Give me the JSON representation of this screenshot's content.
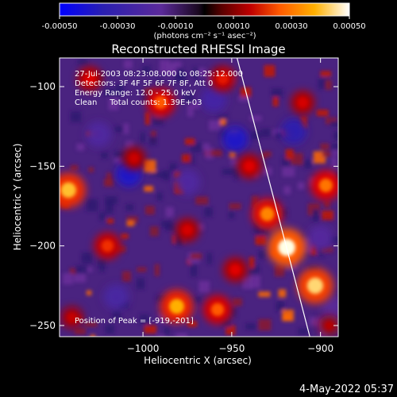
{
  "colors": {
    "background": "#000000",
    "foreground": "#ffffff",
    "colormap": [
      "#0000ff",
      "#3a1f9e",
      "#5b2a9a",
      "#6a2b88",
      "#000000",
      "#5a0000",
      "#aa0000",
      "#e00000",
      "#ff5a00",
      "#ff9a00",
      "#ffd000",
      "#ffffff"
    ]
  },
  "colorbar": {
    "ticks": [
      "-0.00050",
      "-0.00030",
      "-0.00010",
      "0.00010",
      "0.00030",
      "0.00050"
    ],
    "tick_values": [
      -0.0005,
      -0.0003,
      -0.0001,
      0.0001,
      0.0003,
      0.0005
    ],
    "range": [
      -0.0005,
      0.0005
    ],
    "unit_label": "(photons cm⁻² s⁻¹ asec⁻²)"
  },
  "chart_data": {
    "type": "heatmap",
    "title": "Reconstructed RHESSI Image",
    "xlabel": "Heliocentric X (arcsec)",
    "ylabel": "Heliocentric Y (arcsec)",
    "xlim": [
      -1047,
      -890
    ],
    "ylim": [
      -257,
      -82
    ],
    "x_ticks": [
      -1000,
      -950,
      -900
    ],
    "y_ticks": [
      -100,
      -150,
      -200,
      -250
    ],
    "x_tick_labels": [
      "−1000",
      "−950",
      "−900"
    ],
    "y_tick_labels": [
      "−100",
      "−150",
      "−200",
      "−250"
    ],
    "annotations": [
      "27-Jul-2003 08:23:08.000 to 08:25:12.000",
      "Detectors: 3F 4F 5F 6F 7F 8F, Att 0",
      "Energy Range: 12.0 - 25.0 keV",
      "Clean     Total counts: 1.39E+03"
    ],
    "peak_label": "Position of Peak = [-919,-201]",
    "peak": [
      -919,
      -201
    ],
    "limb_line": [
      [
        -947,
        -82
      ],
      [
        -906,
        -257
      ]
    ],
    "bright_spots": [
      {
        "x": -919,
        "y": -201,
        "v": 0.0005
      },
      {
        "x": -903,
        "y": -225,
        "v": 0.00045
      },
      {
        "x": -1042,
        "y": -165,
        "v": 0.00042
      },
      {
        "x": -981,
        "y": -238,
        "v": 0.0004
      },
      {
        "x": -930,
        "y": -180,
        "v": 0.00035
      },
      {
        "x": -897,
        "y": -162,
        "v": 0.00033
      },
      {
        "x": -990,
        "y": -110,
        "v": 0.0003
      },
      {
        "x": -958,
        "y": -240,
        "v": 0.0003
      },
      {
        "x": -1020,
        "y": -200,
        "v": 0.00025
      },
      {
        "x": -955,
        "y": -95,
        "v": 0.00022
      },
      {
        "x": -940,
        "y": -150,
        "v": 0.0002
      },
      {
        "x": -1030,
        "y": -95,
        "v": 0.0002
      },
      {
        "x": -975,
        "y": -190,
        "v": 0.00018
      },
      {
        "x": -1005,
        "y": -145,
        "v": 0.00016
      },
      {
        "x": -910,
        "y": -110,
        "v": 0.00018
      },
      {
        "x": -1040,
        "y": -245,
        "v": 0.00015
      },
      {
        "x": -948,
        "y": -215,
        "v": 0.0002
      },
      {
        "x": -895,
        "y": -250,
        "v": 0.00012
      }
    ],
    "dim_spots": [
      {
        "x": -1008,
        "y": -155,
        "v": -0.0004
      },
      {
        "x": -948,
        "y": -133,
        "v": -0.0004
      },
      {
        "x": -915,
        "y": -128,
        "v": -0.00035
      },
      {
        "x": -960,
        "y": -108,
        "v": -0.00025
      },
      {
        "x": -1025,
        "y": -130,
        "v": -0.0002
      },
      {
        "x": -1015,
        "y": -232,
        "v": -0.00022
      },
      {
        "x": -900,
        "y": -195,
        "v": -0.00018
      },
      {
        "x": -975,
        "y": -160,
        "v": -0.0002
      },
      {
        "x": -892,
        "y": -240,
        "v": -0.00015
      }
    ]
  },
  "footer": {
    "timestamp": "4-May-2022 05:37"
  }
}
